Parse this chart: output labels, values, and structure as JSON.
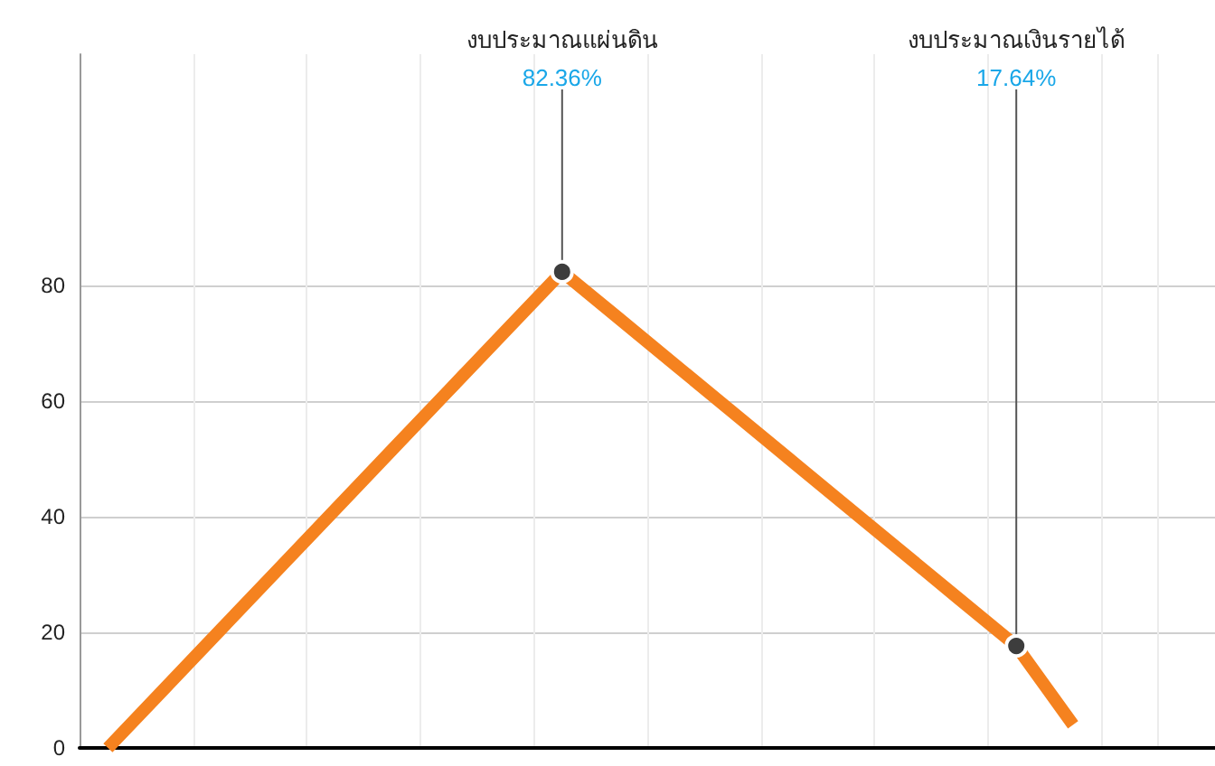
{
  "chart_data": {
    "type": "line",
    "categories": [
      null,
      null,
      null,
      null,
      null,
      null,
      null,
      null,
      null,
      null,
      null,
      null,
      null,
      null,
      null,
      null,
      null,
      null,
      null,
      null
    ],
    "ylim": [
      0,
      120
    ],
    "yticks": [
      0,
      20,
      40,
      60,
      80
    ],
    "tick_labels": "y",
    "grid": true,
    "series": [
      {
        "color": "#f5821f",
        "colors": [
          "#3d3d3d",
          "#3d3d3d",
          "#3d3d3d",
          "#3d3d3d",
          "#3d3d3d",
          "#3d3d3d",
          "#3d3d3d",
          "#3d3d3d",
          "#3d3d3d",
          "#3d3d3d",
          "#3d3d3d",
          "#3d3d3d",
          "#3d3d3d",
          "#3d3d3d",
          "#3d3d3d",
          "#3d3d3d",
          "#3d3d3d",
          "#3d3d3d",
          "#3d3d3d",
          "#3d3d3d"
        ],
        "values": [
          0,
          10.3,
          20.6,
          30.9,
          41.2,
          51.5,
          61.8,
          72.1,
          82.36,
          74.3,
          66.2,
          58.1,
          50,
          41.9,
          33.8,
          25.7,
          17.64,
          4,
          null,
          null
        ],
        "value_labels": [
          null,
          null,
          null,
          null,
          null,
          null,
          null,
          null,
          "82.36%",
          null,
          null,
          null,
          null,
          null,
          null,
          null,
          "17.64%",
          null,
          null,
          null
        ]
      }
    ],
    "annotations": [
      "งบประมาณแผ่นดิน",
      "งบประมาณเงินรายได้"
    ]
  }
}
